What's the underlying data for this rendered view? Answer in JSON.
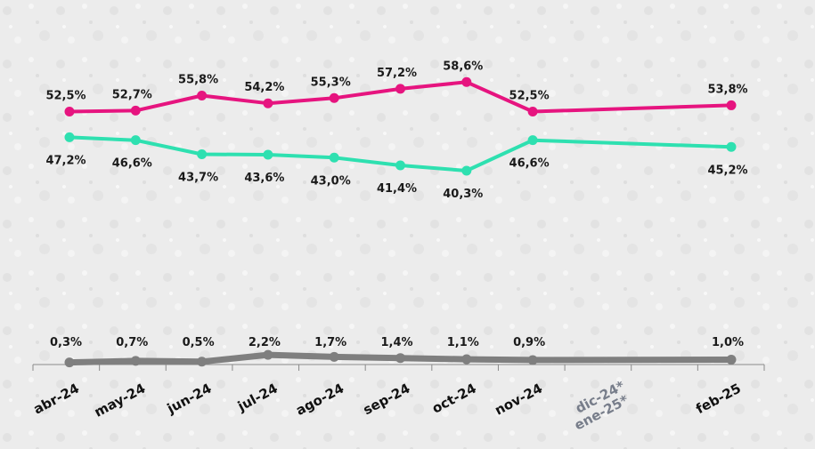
{
  "chart_data": {
    "type": "line",
    "categories": [
      "abr-24",
      "may-24",
      "jun-24",
      "jul-24",
      "ago-24",
      "sep-24",
      "oct-24",
      "nov-24",
      "dic-24*",
      "ene-25*",
      "feb-25"
    ],
    "muted_categories": [
      "dic-24*",
      "ene-25*"
    ],
    "ylim": [
      0,
      62
    ],
    "grid": false,
    "series": [
      {
        "color": "#e6147f",
        "values": [
          52.5,
          52.7,
          55.8,
          54.2,
          55.3,
          57.2,
          58.6,
          52.5,
          null,
          null,
          53.8
        ],
        "labels": [
          "52,5%",
          "52,7%",
          "55,8%",
          "54,2%",
          "55,3%",
          "57,2%",
          "58,6%",
          "52,5%",
          "",
          "",
          "53,8%"
        ],
        "label_position": "above"
      },
      {
        "color": "#2ee0b0",
        "values": [
          47.2,
          46.6,
          43.7,
          43.6,
          43.0,
          41.4,
          40.3,
          46.6,
          null,
          null,
          45.2
        ],
        "labels": [
          "47,2%",
          "46,6%",
          "43,7%",
          "43,6%",
          "43,0%",
          "41,4%",
          "40,3%",
          "46,6%",
          "",
          "",
          "45,2%"
        ],
        "label_position": "below"
      },
      {
        "color": "#7f7f7f",
        "values": [
          0.3,
          0.7,
          0.5,
          2.2,
          1.7,
          1.4,
          1.1,
          0.9,
          null,
          null,
          1.0
        ],
        "labels": [
          "0,3%",
          "0,7%",
          "0,5%",
          "2,2%",
          "1,7%",
          "1,4%",
          "1,1%",
          "0,9%",
          "",
          "",
          "1,0%"
        ],
        "label_position": "above"
      }
    ]
  }
}
